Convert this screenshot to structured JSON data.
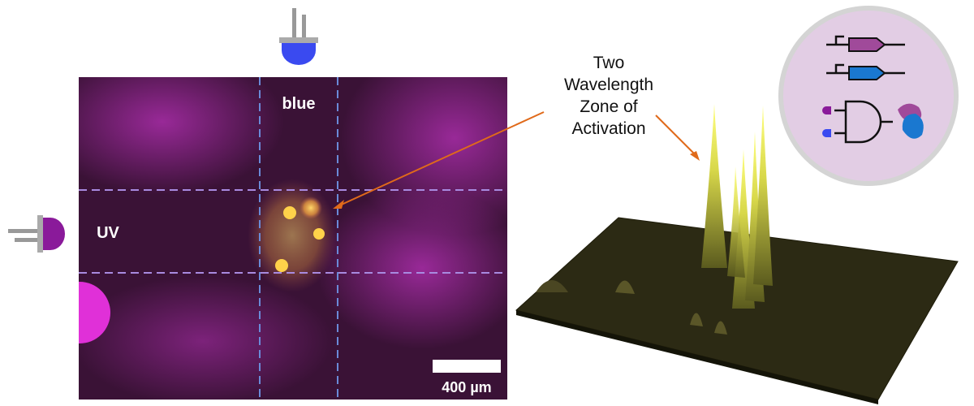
{
  "panel": {
    "labels": {
      "blue": "blue",
      "uv": "UV"
    },
    "scale_bar": "400 µm"
  },
  "annotation": {
    "lines": [
      "Two",
      "Wavelength",
      "Zone of",
      "Activation"
    ]
  }
}
